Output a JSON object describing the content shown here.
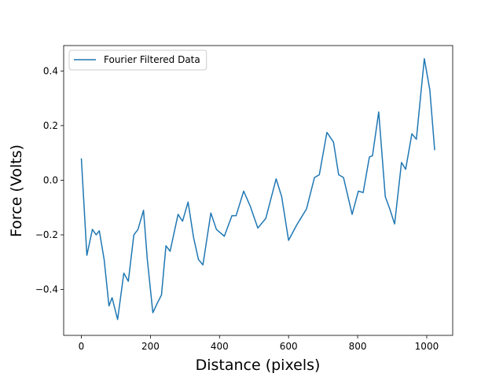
{
  "chart_data": {
    "type": "line",
    "xlabel": "Distance (pixels)",
    "ylabel": "Force (Volts)",
    "x": [
      0,
      16,
      32,
      43,
      52,
      66,
      80,
      89,
      105,
      123,
      136,
      152,
      164,
      180,
      191,
      207,
      220,
      232,
      245,
      257,
      280,
      293,
      309,
      325,
      339,
      352,
      375,
      391,
      414,
      436,
      448,
      470,
      489,
      511,
      534,
      564,
      580,
      600,
      623,
      652,
      675,
      689,
      711,
      730,
      745,
      759,
      784,
      802,
      816,
      834,
      843,
      861,
      880,
      893,
      907,
      927,
      939,
      957,
      970,
      993,
      1009,
      1023
    ],
    "series": [
      {
        "name": "Fourier Filtered Data",
        "color": "#1f77b4",
        "values": [
          0.08,
          -0.275,
          -0.18,
          -0.2,
          -0.185,
          -0.29,
          -0.46,
          -0.43,
          -0.51,
          -0.34,
          -0.37,
          -0.2,
          -0.18,
          -0.11,
          -0.29,
          -0.485,
          -0.45,
          -0.42,
          -0.24,
          -0.26,
          -0.125,
          -0.15,
          -0.08,
          -0.21,
          -0.29,
          -0.31,
          -0.12,
          -0.18,
          -0.205,
          -0.13,
          -0.13,
          -0.04,
          -0.095,
          -0.175,
          -0.14,
          0.005,
          -0.06,
          -0.22,
          -0.165,
          -0.105,
          0.01,
          0.02,
          0.175,
          0.14,
          0.02,
          0.01,
          -0.125,
          -0.04,
          -0.045,
          0.085,
          0.09,
          0.25,
          -0.06,
          -0.105,
          -0.16,
          0.065,
          0.04,
          0.17,
          0.15,
          0.445,
          0.33,
          0.11
        ]
      }
    ],
    "xlim": [
      -51.2,
      1075.2
    ],
    "xticks": [
      0,
      200,
      400,
      600,
      800,
      1000
    ],
    "ylim": [
      -0.568,
      0.493
    ],
    "yticks": [
      {
        "value": -0.4,
        "label": "−0.4"
      },
      {
        "value": -0.2,
        "label": "−0.2"
      },
      {
        "value": 0,
        "label": "0.0"
      },
      0.2,
      0.4
    ],
    "legend": "upper left",
    "grid": false
  }
}
